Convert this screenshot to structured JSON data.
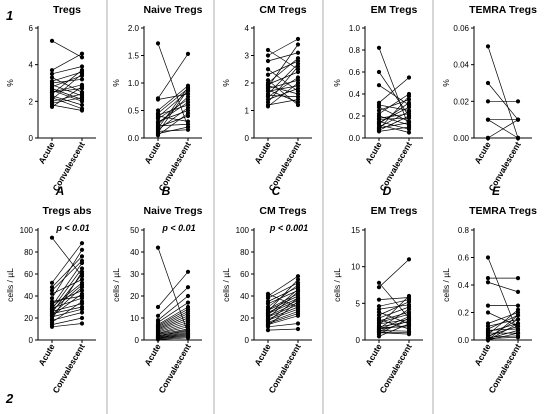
{
  "row_labels": [
    "1",
    "2"
  ],
  "chart_data": [
    {
      "type": "scatter",
      "title": "Tregs",
      "ylabel": "%",
      "yticks": [
        "0",
        "2",
        "4",
        "6"
      ],
      "ylim": [
        0,
        6
      ],
      "categories": [
        "Acute",
        "Convalescent"
      ],
      "panel_label": "A",
      "pvalue": "",
      "acute": [
        5.3,
        3.7,
        3.5,
        3.3,
        3.1,
        3.0,
        2.9,
        2.8,
        2.7,
        2.6,
        2.5,
        2.5,
        2.4,
        2.3,
        2.2,
        2.1,
        2.0,
        1.9,
        1.8,
        1.7
      ],
      "convalescent": [
        4.4,
        4.6,
        3.9,
        2.5,
        3.6,
        3.2,
        2.3,
        3.4,
        2.1,
        2.0,
        2.9,
        2.7,
        3.7,
        1.8,
        1.6,
        3.5,
        2.4,
        2.2,
        1.5,
        2.8
      ]
    },
    {
      "type": "scatter",
      "title": "Naive Tregs",
      "ylabel": "%",
      "yticks": [
        "0.0",
        "0.5",
        "1.0",
        "1.5",
        "2.0"
      ],
      "ylim": [
        0,
        2
      ],
      "categories": [
        "Acute",
        "Convalescent"
      ],
      "panel_label": "B",
      "pvalue": "",
      "acute": [
        1.72,
        0.72,
        0.7,
        0.5,
        0.45,
        0.42,
        0.4,
        0.38,
        0.35,
        0.3,
        0.28,
        0.25,
        0.22,
        0.2,
        0.18,
        0.15,
        0.12,
        0.1,
        0.08,
        0.05
      ],
      "convalescent": [
        0.2,
        1.53,
        0.8,
        0.95,
        0.9,
        0.6,
        0.3,
        0.85,
        0.7,
        0.5,
        0.65,
        0.75,
        0.25,
        0.4,
        0.92,
        0.55,
        0.15,
        0.88,
        0.2,
        0.45
      ]
    },
    {
      "type": "scatter",
      "title": "CM Tregs",
      "ylabel": "%",
      "yticks": [
        "0",
        "1",
        "2",
        "3",
        "4"
      ],
      "ylim": [
        0,
        4
      ],
      "categories": [
        "Acute",
        "Convalescent"
      ],
      "panel_label": "C",
      "pvalue": "",
      "acute": [
        3.2,
        3.0,
        2.8,
        2.5,
        2.3,
        2.1,
        2.0,
        1.95,
        1.9,
        1.85,
        1.8,
        1.75,
        1.7,
        1.6,
        1.55,
        1.5,
        1.4,
        1.3,
        1.2,
        1.15
      ],
      "convalescent": [
        2.5,
        3.6,
        3.1,
        1.7,
        2.8,
        1.2,
        2.9,
        2.4,
        1.6,
        3.4,
        2.1,
        1.3,
        1.9,
        2.7,
        1.5,
        2.2,
        1.8,
        2.6,
        1.4,
        2.0
      ]
    },
    {
      "type": "scatter",
      "title": "EM Tregs",
      "ylabel": "%",
      "yticks": [
        "0.0",
        "0.2",
        "0.4",
        "0.6",
        "0.8",
        "1.0"
      ],
      "ylim": [
        0,
        1
      ],
      "categories": [
        "Acute",
        "Convalescent"
      ],
      "panel_label": "D",
      "pvalue": "",
      "acute": [
        0.82,
        0.6,
        0.48,
        0.32,
        0.3,
        0.28,
        0.25,
        0.22,
        0.2,
        0.18,
        0.17,
        0.15,
        0.14,
        0.13,
        0.12,
        0.1,
        0.09,
        0.08,
        0.07,
        0.06
      ],
      "convalescent": [
        0.1,
        0.2,
        0.3,
        0.55,
        0.25,
        0.15,
        0.35,
        0.4,
        0.12,
        0.22,
        0.18,
        0.08,
        0.28,
        0.32,
        0.05,
        0.24,
        0.14,
        0.38,
        0.2,
        0.1
      ]
    },
    {
      "type": "scatter",
      "title": "TEMRA Tregs",
      "ylabel": "%",
      "yticks": [
        "0.00",
        "0.02",
        "0.04",
        "0.06"
      ],
      "ylim": [
        0,
        0.06
      ],
      "categories": [
        "Acute",
        "Convalescent"
      ],
      "panel_label": "E",
      "pvalue": "",
      "acute": [
        0.05,
        0.03,
        0.02,
        0.01,
        0.01,
        0,
        0,
        0,
        0,
        0
      ],
      "convalescent": [
        0,
        0.01,
        0.02,
        0,
        0.01,
        0,
        0,
        0.01,
        0,
        0
      ]
    },
    {
      "type": "scatter",
      "title": "Tregs abs",
      "ylabel": "cells / µL",
      "yticks": [
        "0",
        "20",
        "40",
        "60",
        "80",
        "100"
      ],
      "ylim": [
        0,
        100
      ],
      "categories": [
        "Acute",
        "Convalescent"
      ],
      "panel_label": "",
      "pvalue": "p < 0.01",
      "acute": [
        93,
        52,
        48,
        45,
        42,
        38,
        35,
        33,
        31,
        30,
        29,
        28,
        27,
        26,
        25,
        24,
        23,
        22,
        21,
        19,
        18,
        16,
        14,
        12
      ],
      "convalescent": [
        58,
        88,
        76,
        72,
        55,
        82,
        40,
        45,
        70,
        52,
        38,
        65,
        50,
        33,
        60,
        30,
        48,
        42,
        28,
        62,
        25,
        35,
        20,
        15
      ]
    },
    {
      "type": "scatter",
      "title": "Naive Tregs",
      "ylabel": "cells / µL",
      "yticks": [
        "0",
        "10",
        "20",
        "30",
        "40",
        "50"
      ],
      "ylim": [
        0,
        50
      ],
      "categories": [
        "Acute",
        "Convalescent"
      ],
      "panel_label": "",
      "pvalue": "p < 0.01",
      "acute": [
        42,
        15,
        11,
        9,
        8,
        7,
        6.5,
        6,
        5.5,
        5,
        4.5,
        4,
        3.5,
        3,
        2.8,
        2.5,
        2,
        1.8,
        1.5,
        1.2,
        1,
        0.8,
        0.5,
        0.2
      ],
      "convalescent": [
        3,
        31,
        24,
        20,
        17,
        15,
        14,
        13,
        12,
        11,
        10,
        9,
        8,
        7,
        6,
        5,
        4.5,
        4,
        3.5,
        3,
        2.5,
        2,
        1.5,
        1
      ]
    },
    {
      "type": "scatter",
      "title": "CM Tregs",
      "ylabel": "cells / µL",
      "yticks": [
        "0",
        "20",
        "40",
        "60",
        "80",
        "100"
      ],
      "ylim": [
        0,
        100
      ],
      "categories": [
        "Acute",
        "Convalescent"
      ],
      "panel_label": "",
      "pvalue": "p < 0.001",
      "acute": [
        42,
        40,
        38,
        35,
        33,
        30,
        28,
        27,
        26,
        25,
        24,
        23,
        22,
        21,
        20,
        19,
        18,
        17,
        16,
        15,
        14,
        13,
        12,
        9
      ],
      "convalescent": [
        30,
        58,
        52,
        48,
        45,
        50,
        42,
        40,
        55,
        38,
        36,
        46,
        34,
        32,
        44,
        30,
        28,
        38,
        26,
        24,
        22,
        35,
        15,
        10
      ]
    },
    {
      "type": "scatter",
      "title": "EM Tregs",
      "ylabel": "cells / µL",
      "yticks": [
        "0",
        "5",
        "10",
        "15"
      ],
      "ylim": [
        0,
        15
      ],
      "categories": [
        "Acute",
        "Convalescent"
      ],
      "panel_label": "",
      "pvalue": "",
      "acute": [
        7.8,
        7.2,
        5.5,
        4.6,
        4.2,
        3.8,
        3.4,
        3.0,
        2.8,
        2.6,
        2.4,
        2.2,
        2.0,
        1.8,
        1.7,
        1.6,
        1.5,
        1.4,
        1.3,
        1.2,
        1.1,
        1.0,
        0.8,
        0.5
      ],
      "convalescent": [
        3.0,
        11.0,
        5.8,
        5.5,
        4.8,
        2.2,
        5.2,
        4.5,
        1.5,
        3.8,
        3.5,
        2.8,
        6.0,
        2.5,
        1.8,
        4.2,
        2.0,
        3.2,
        1.2,
        2.6,
        1.0,
        0.8,
        3.0,
        2.2
      ]
    },
    {
      "type": "scatter",
      "title": "TEMRA Tregs",
      "ylabel": "cells / µL",
      "yticks": [
        "0.0",
        "0.2",
        "0.4",
        "0.6",
        "0.8"
      ],
      "ylim": [
        0,
        0.8
      ],
      "categories": [
        "Acute",
        "Convalescent"
      ],
      "panel_label": "",
      "pvalue": "",
      "acute": [
        0.6,
        0.45,
        0.42,
        0.25,
        0.2,
        0.12,
        0.1,
        0.08,
        0.07,
        0.06,
        0.05,
        0.04,
        0.03,
        0.02,
        0.02,
        0.01,
        0.01,
        0,
        0,
        0
      ],
      "convalescent": [
        0.05,
        0.45,
        0.35,
        0.25,
        0.1,
        0.2,
        0.15,
        0.18,
        0.08,
        0.12,
        0.05,
        0.22,
        0.1,
        0.03,
        0.15,
        0.07,
        0.02,
        0.12,
        0.05,
        0.18
      ]
    }
  ]
}
